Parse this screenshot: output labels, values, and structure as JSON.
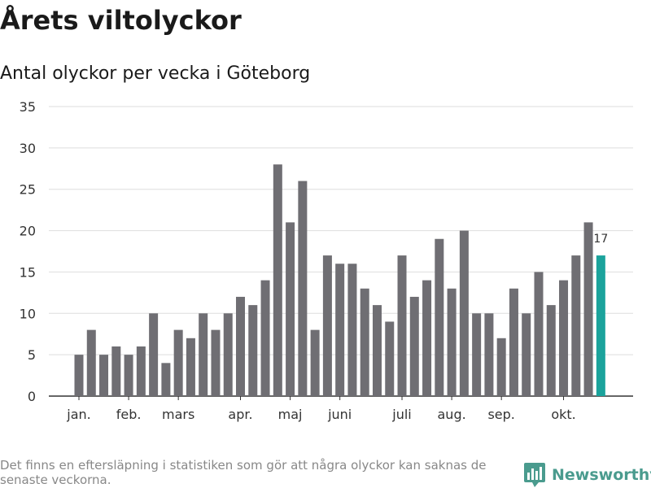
{
  "title": "Årets viltolyckor",
  "subtitle": "Antal olyckor per vecka i Göteborg",
  "footnote": "Det finns en eftersläpning i statistiken som gör att några olyckor kan saknas de senaste veckorna.",
  "brand": {
    "name": "Newsworthy",
    "icon": "bar-chart-bubble-icon"
  },
  "colors": {
    "bar": "#6f6e73",
    "highlight": "#1ba39c",
    "grid": "#dddddd",
    "axis": "#333333",
    "brand": "#4a9b8e"
  },
  "chart_data": {
    "type": "bar",
    "ylim": [
      0,
      35
    ],
    "yticks": [
      0,
      5,
      10,
      15,
      20,
      25,
      30,
      35
    ],
    "month_labels": [
      "jan.",
      "feb.",
      "mars",
      "apr.",
      "maj",
      "juni",
      "juli",
      "aug.",
      "sep.",
      "okt."
    ],
    "month_label_bar_index": [
      0,
      4,
      8,
      13,
      17,
      21,
      26,
      30,
      34,
      39
    ],
    "values": [
      5,
      8,
      5,
      6,
      5,
      6,
      10,
      4,
      8,
      7,
      10,
      8,
      10,
      12,
      11,
      14,
      28,
      21,
      26,
      8,
      17,
      16,
      16,
      13,
      11,
      9,
      17,
      12,
      14,
      19,
      13,
      20,
      10,
      10,
      7,
      13,
      10,
      15,
      11,
      14,
      17,
      21,
      17
    ],
    "highlight_last": true,
    "data_label": "17",
    "grid": true
  }
}
